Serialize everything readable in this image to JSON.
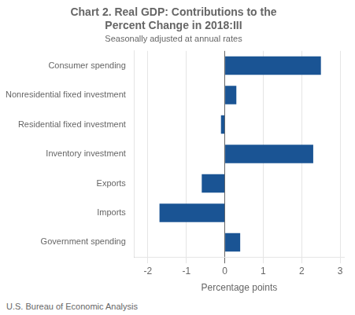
{
  "chart_data": {
    "type": "bar",
    "orientation": "horizontal",
    "title": [
      "Chart 2. Real GDP: Contributions to the",
      "Percent Change in 2018:III"
    ],
    "subtitle": "Seasonally adjusted at annual rates",
    "xlabel": "Percentage points",
    "footnote": "U.S. Bureau of Economic Analysis",
    "categories": [
      "Government spending",
      "Imports",
      "Exports",
      "Inventory investment",
      "Residential fixed investment",
      "Nonresidential fixed investment",
      "Consumer spending"
    ],
    "values": [
      0.4,
      -1.7,
      -0.6,
      2.3,
      -0.1,
      0.3,
      2.5
    ],
    "color": "#1a5494",
    "xlim": [
      -2.35,
      3.1
    ],
    "xticks": [
      -2,
      -1,
      0,
      1,
      2,
      3
    ],
    "grid": true
  }
}
